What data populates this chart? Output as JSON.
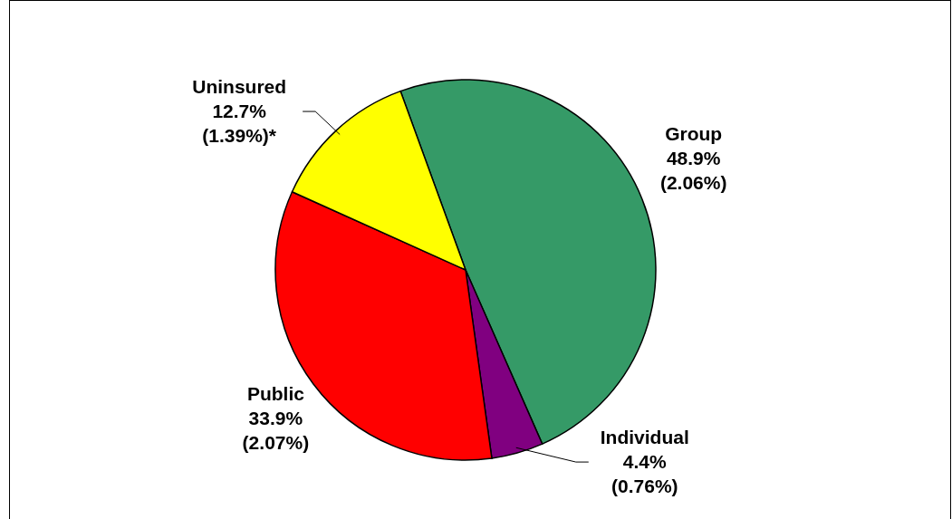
{
  "chart_data": {
    "type": "pie",
    "categories": [
      "Group",
      "Individual",
      "Public",
      "Uninsured"
    ],
    "values": [
      48.9,
      4.4,
      33.9,
      12.7
    ],
    "colors": [
      "#359a67",
      "#800080",
      "#ff0000",
      "#ffff00"
    ],
    "value_labels": [
      "48.9%\n(2.06%)",
      "4.4%\n(0.76%)",
      "33.9%\n(2.07%)",
      "12.7%\n(1.39%)*"
    ]
  }
}
